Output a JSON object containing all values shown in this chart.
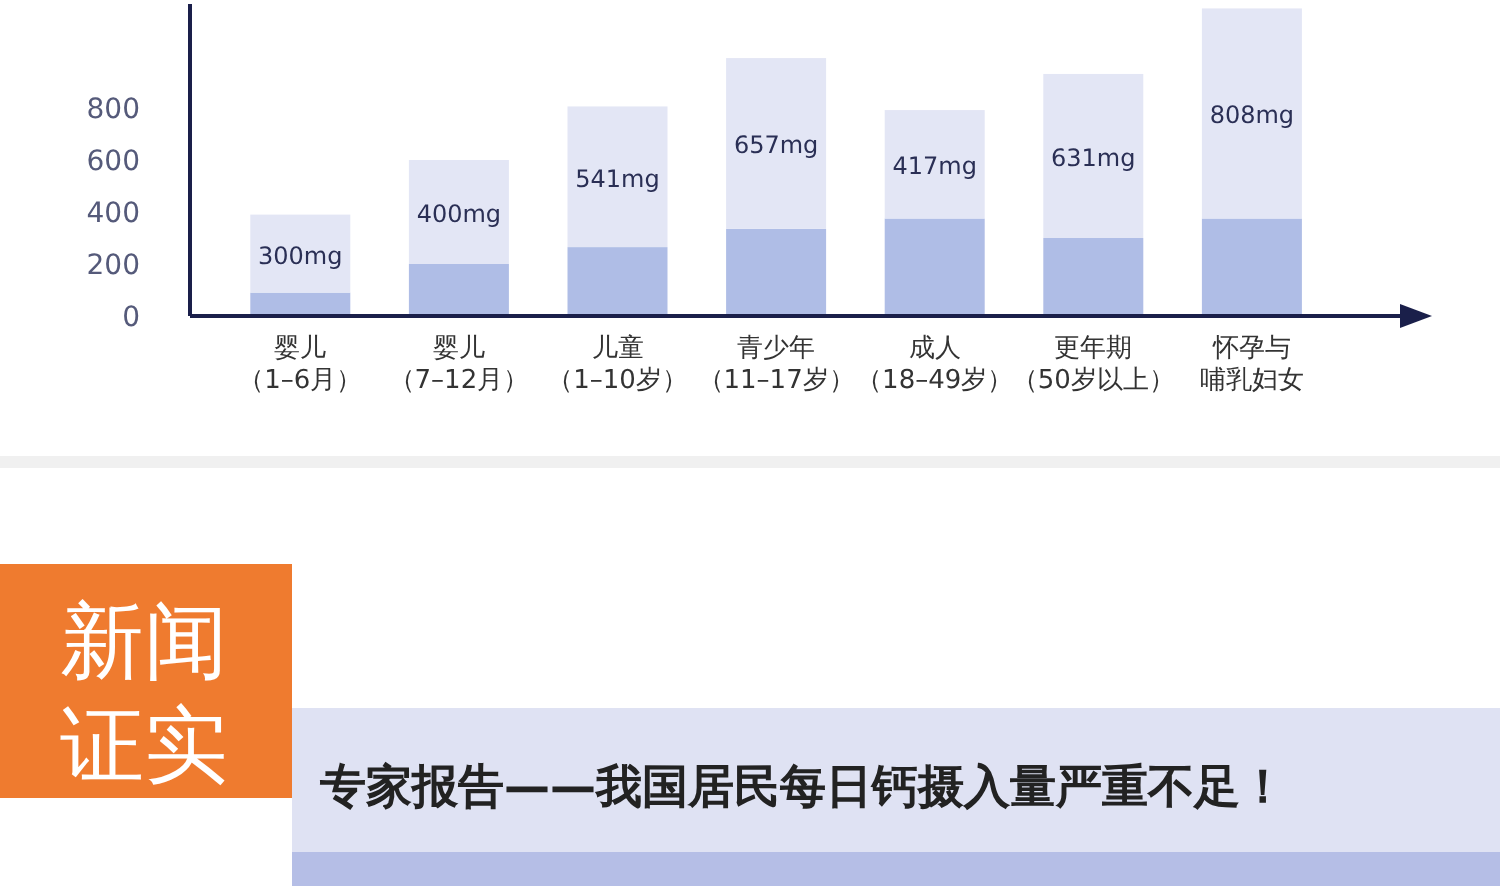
{
  "chart_data": {
    "type": "bar",
    "stacked": true,
    "categories": [
      "婴儿（1–6月）",
      "婴儿（7–12月）",
      "儿童（1–10岁）",
      "青少年（11–17岁）",
      "成人（18–49岁）",
      "更年期（50岁以上）",
      "怀孕与哺乳妇女"
    ],
    "series": [
      {
        "color": "#afbde6",
        "values": [
          90,
          200,
          265,
          335,
          375,
          300,
          375
        ]
      },
      {
        "color": "#e3e6f5",
        "values": [
          300,
          400,
          541,
          657,
          417,
          631,
          808
        ],
        "value_labels": [
          "300mg",
          "400mg",
          "541mg",
          "657mg",
          "417mg",
          "631mg",
          "808mg"
        ]
      }
    ],
    "ylim": [
      0,
      1200
    ],
    "yticks": [
      0,
      200,
      400,
      600,
      800
    ],
    "annotations": [
      "新闻证实",
      "专家报告——我国居民每日钙摄入量严重不足！"
    ]
  }
}
